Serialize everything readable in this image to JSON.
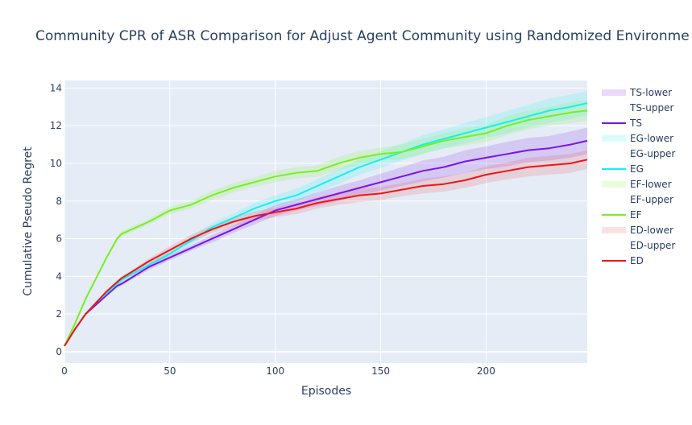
{
  "chart_data": {
    "type": "line",
    "title": "Community CPR of ASR Comparison for Adjust Agent Community using Randomized Environme",
    "xlabel": "Episodes",
    "ylabel": "Cumulative Pseudo Regret",
    "xlim": [
      0,
      248
    ],
    "ylim": [
      -0.6,
      14.4
    ],
    "xticks": [
      0,
      50,
      100,
      150,
      200
    ],
    "yticks": [
      0,
      2,
      4,
      6,
      8,
      10,
      12,
      14
    ],
    "grid": true,
    "legend_position": "right",
    "x": [
      0,
      5,
      10,
      15,
      20,
      25,
      27,
      30,
      40,
      50,
      60,
      70,
      80,
      90,
      100,
      110,
      120,
      130,
      140,
      150,
      160,
      170,
      180,
      190,
      200,
      210,
      220,
      230,
      240,
      248
    ],
    "series": [
      {
        "name": "TS",
        "color": "#7b14e8",
        "lower_name": "TS-lower",
        "upper_name": "TS-upper",
        "band_color": "rgba(123,20,232,0.16)",
        "values": [
          0.3,
          1.2,
          2.0,
          2.5,
          3.0,
          3.5,
          3.6,
          3.8,
          4.5,
          5.0,
          5.5,
          6.0,
          6.5,
          7.0,
          7.5,
          7.8,
          8.1,
          8.4,
          8.7,
          9.0,
          9.3,
          9.6,
          9.8,
          10.1,
          10.3,
          10.5,
          10.7,
          10.8,
          11.0,
          11.2
        ],
        "lower": [
          0.3,
          1.2,
          2.0,
          2.45,
          2.95,
          3.4,
          3.5,
          3.7,
          4.35,
          4.85,
          5.35,
          5.8,
          6.3,
          6.75,
          7.2,
          7.5,
          7.75,
          8.0,
          8.3,
          8.55,
          8.8,
          9.05,
          9.25,
          9.5,
          9.7,
          9.85,
          10.05,
          10.15,
          10.3,
          10.5
        ],
        "upper": [
          0.3,
          1.2,
          2.0,
          2.55,
          3.05,
          3.6,
          3.7,
          3.9,
          4.65,
          5.15,
          5.65,
          6.2,
          6.7,
          7.25,
          7.8,
          8.1,
          8.45,
          8.8,
          9.1,
          9.45,
          9.8,
          10.15,
          10.35,
          10.7,
          10.9,
          11.15,
          11.35,
          11.45,
          11.7,
          11.9
        ]
      },
      {
        "name": "EG",
        "color": "#14f0f0",
        "lower_name": "EG-lower",
        "upper_name": "EG-upper",
        "band_color": "rgba(20,240,240,0.16)",
        "values": [
          0.3,
          1.2,
          2.0,
          2.6,
          3.1,
          3.6,
          3.8,
          4.0,
          4.6,
          5.2,
          5.9,
          6.6,
          7.1,
          7.6,
          8.0,
          8.3,
          8.8,
          9.3,
          9.8,
          10.2,
          10.6,
          11.0,
          11.3,
          11.6,
          11.9,
          12.2,
          12.5,
          12.8,
          13.0,
          13.2
        ],
        "lower": [
          0.3,
          1.2,
          2.0,
          2.55,
          3.05,
          3.5,
          3.7,
          3.9,
          4.45,
          5.05,
          5.7,
          6.35,
          6.85,
          7.3,
          7.7,
          7.95,
          8.45,
          8.9,
          9.4,
          9.75,
          10.15,
          10.5,
          10.8,
          11.05,
          11.35,
          11.6,
          11.9,
          12.15,
          12.35,
          12.55
        ],
        "upper": [
          0.3,
          1.2,
          2.0,
          2.65,
          3.15,
          3.7,
          3.9,
          4.1,
          4.75,
          5.35,
          6.1,
          6.85,
          7.35,
          7.9,
          8.3,
          8.65,
          9.15,
          9.7,
          10.2,
          10.65,
          11.05,
          11.5,
          11.8,
          12.15,
          12.45,
          12.8,
          13.1,
          13.45,
          13.65,
          13.85
        ]
      },
      {
        "name": "EF",
        "color": "#78f01e",
        "lower_name": "EF-lower",
        "upper_name": "EF-upper",
        "band_color": "rgba(120,240,30,0.16)",
        "values": [
          0.3,
          1.5,
          2.8,
          3.9,
          5.0,
          6.0,
          6.25,
          6.4,
          6.9,
          7.5,
          7.8,
          8.3,
          8.7,
          9.0,
          9.3,
          9.5,
          9.6,
          10.0,
          10.3,
          10.5,
          10.6,
          10.9,
          11.2,
          11.4,
          11.6,
          12.0,
          12.3,
          12.5,
          12.7,
          12.8
        ],
        "lower": [
          0.3,
          1.5,
          2.8,
          3.85,
          4.9,
          5.9,
          6.1,
          6.25,
          6.75,
          7.3,
          7.6,
          8.05,
          8.45,
          8.75,
          9.0,
          9.2,
          9.3,
          9.65,
          9.95,
          10.15,
          10.2,
          10.5,
          10.8,
          10.95,
          11.15,
          11.5,
          11.8,
          12.0,
          12.15,
          12.25
        ],
        "upper": [
          0.3,
          1.5,
          2.8,
          3.95,
          5.1,
          6.1,
          6.4,
          6.55,
          7.05,
          7.7,
          8.0,
          8.55,
          8.95,
          9.25,
          9.6,
          9.8,
          9.9,
          10.35,
          10.65,
          10.85,
          11.0,
          11.3,
          11.6,
          11.85,
          12.05,
          12.5,
          12.8,
          13.0,
          13.25,
          13.35
        ]
      },
      {
        "name": "ED",
        "color": "#f01414",
        "lower_name": "ED-lower",
        "upper_name": "ED-upper",
        "band_color": "rgba(240,20,20,0.13)",
        "values": [
          0.3,
          1.2,
          2.0,
          2.6,
          3.2,
          3.7,
          3.9,
          4.1,
          4.8,
          5.4,
          6.0,
          6.5,
          6.9,
          7.2,
          7.4,
          7.6,
          7.9,
          8.1,
          8.3,
          8.4,
          8.6,
          8.8,
          8.9,
          9.1,
          9.4,
          9.6,
          9.8,
          9.9,
          10.0,
          10.2
        ],
        "lower": [
          0.3,
          1.2,
          2.0,
          2.55,
          3.15,
          3.6,
          3.8,
          4.0,
          4.65,
          5.2,
          5.8,
          6.3,
          6.65,
          6.95,
          7.15,
          7.3,
          7.6,
          7.8,
          7.95,
          8.05,
          8.25,
          8.4,
          8.5,
          8.7,
          8.95,
          9.15,
          9.3,
          9.4,
          9.5,
          9.7
        ],
        "upper": [
          0.3,
          1.2,
          2.0,
          2.65,
          3.25,
          3.8,
          4.0,
          4.2,
          4.95,
          5.6,
          6.2,
          6.7,
          7.15,
          7.45,
          7.65,
          7.9,
          8.2,
          8.4,
          8.65,
          8.75,
          8.95,
          9.2,
          9.3,
          9.5,
          9.85,
          10.05,
          10.3,
          10.4,
          10.5,
          10.7
        ]
      }
    ]
  }
}
